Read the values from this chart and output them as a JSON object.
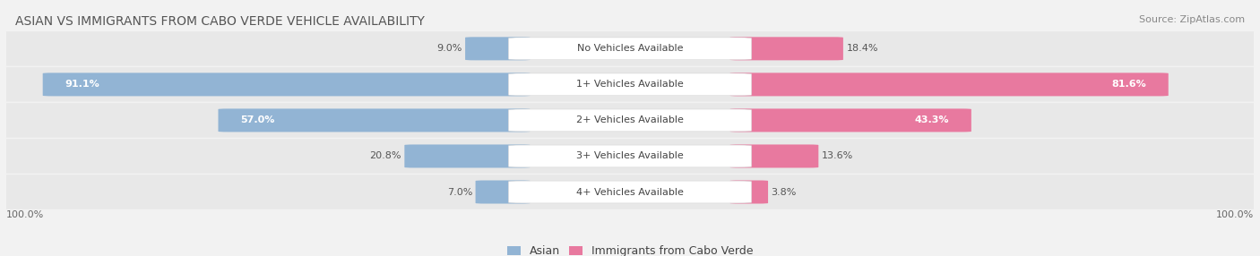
{
  "title": "ASIAN VS IMMIGRANTS FROM CABO VERDE VEHICLE AVAILABILITY",
  "source": "Source: ZipAtlas.com",
  "categories": [
    "No Vehicles Available",
    "1+ Vehicles Available",
    "2+ Vehicles Available",
    "3+ Vehicles Available",
    "4+ Vehicles Available"
  ],
  "asian_values": [
    9.0,
    91.1,
    57.0,
    20.8,
    7.0
  ],
  "immigrant_values": [
    18.4,
    81.6,
    43.3,
    13.6,
    3.8
  ],
  "asian_color": "#92b4d4",
  "immigrant_color": "#e8799f",
  "bar_height": 0.62,
  "bg_color": "#f2f2f2",
  "row_bg_even": "#ebebeb",
  "row_bg_odd": "#e4e4e4",
  "label_bg_color": "#ffffff",
  "title_fontsize": 10,
  "source_fontsize": 8,
  "label_fontsize": 8,
  "value_fontsize": 8,
  "legend_fontsize": 9,
  "footer_fontsize": 8
}
